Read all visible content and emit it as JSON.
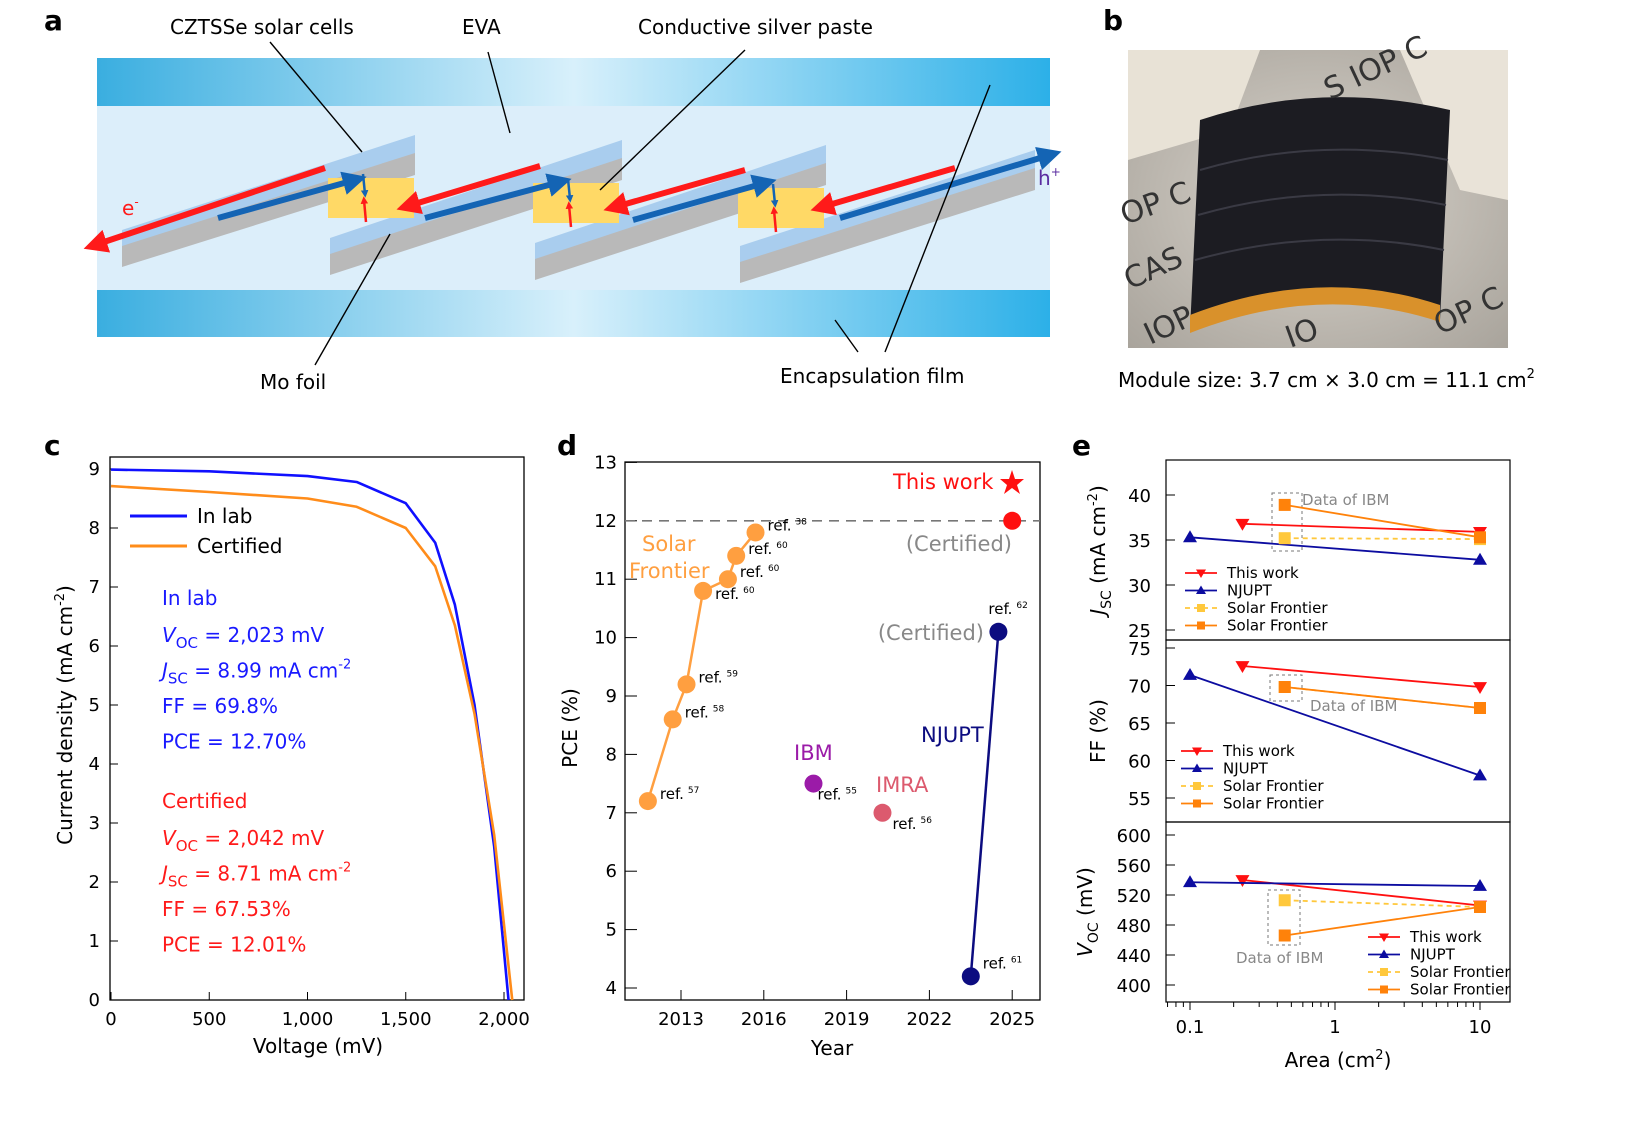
{
  "panels": {
    "a": "a",
    "b": "b",
    "c": "c",
    "d": "d",
    "e": "e"
  },
  "panel_a": {
    "labels": {
      "cells": "CZTSSe solar cells",
      "eva": "EVA",
      "paste": "Conductive silver paste",
      "mo": "Mo foil",
      "encap": "Encapsulation film",
      "electron": "e",
      "electron_sup": "-",
      "hole": "h",
      "hole_sup": "+"
    },
    "colors": {
      "red_arrow": "#ff1a1a",
      "blue_arrow": "#1464b4",
      "gold": "#ffd966",
      "band": "#3fb6e6"
    }
  },
  "panel_b": {
    "caption": "Module size: 3.7 cm × 3.0 cm = 11.1 cm",
    "caption_sup": "2",
    "photo_text": [
      "S IOP C",
      "OP C",
      "CAS",
      "IOP",
      "IO",
      "OP C"
    ]
  },
  "chart_data": [
    {
      "panel": "c",
      "type": "line",
      "xlabel": "Voltage (mV)",
      "ylabel": "Current density (mA cm",
      "ylabel_sup": "-2",
      "ylabel_end": ")",
      "xlim": [
        0,
        2100
      ],
      "ylim": [
        0,
        9.2
      ],
      "xticks": [
        0,
        500,
        1000,
        1500,
        2000
      ],
      "xtick_labels": [
        "0",
        "500",
        "1,000",
        "1,500",
        "2,000"
      ],
      "yticks": [
        0,
        1,
        2,
        3,
        4,
        5,
        6,
        7,
        8,
        9
      ],
      "legend": "top-left",
      "series": [
        {
          "name": "In lab",
          "color": "#1010ff",
          "x": [
            0,
            500,
            1000,
            1250,
            1500,
            1650,
            1750,
            1850,
            1950,
            2023
          ],
          "y": [
            8.99,
            8.96,
            8.88,
            8.78,
            8.42,
            7.75,
            6.7,
            5.0,
            2.6,
            0
          ]
        },
        {
          "name": "Certified",
          "color": "#ff8c1a",
          "x": [
            0,
            500,
            1000,
            1250,
            1500,
            1650,
            1750,
            1850,
            1950,
            2042
          ],
          "y": [
            8.71,
            8.61,
            8.5,
            8.36,
            8.0,
            7.35,
            6.35,
            4.85,
            2.8,
            0
          ]
        }
      ],
      "annotations": {
        "lab": {
          "title": "In lab",
          "color": "#1a1aff",
          "lines": [
            [
              "V",
              "OC",
              " = 2,023 mV",
              ""
            ],
            [
              "J",
              "SC",
              " = 8.99 mA cm",
              "-2"
            ],
            [
              "",
              "",
              "FF = 69.8%",
              ""
            ],
            [
              "",
              "",
              "PCE = 12.70%",
              ""
            ]
          ]
        },
        "cert": {
          "title": "Certified",
          "color": "#ff1a1a",
          "lines": [
            [
              "V",
              "OC",
              " = 2,042 mV",
              ""
            ],
            [
              "J",
              "SC",
              " = 8.71 mA cm",
              "-2"
            ],
            [
              "",
              "",
              "FF = 67.53%",
              ""
            ],
            [
              "",
              "",
              "PCE = 12.01%",
              ""
            ]
          ]
        }
      }
    },
    {
      "panel": "d",
      "type": "scatter",
      "xlabel": "Year",
      "ylabel": "PCE (%)",
      "xlim": [
        2011,
        2026
      ],
      "ylim": [
        3.8,
        13
      ],
      "xticks": [
        2013,
        2016,
        2019,
        2022,
        2025
      ],
      "yticks": [
        4,
        5,
        6,
        7,
        8,
        9,
        10,
        11,
        12,
        13
      ],
      "reference_line": 12,
      "groups": [
        {
          "name": "Solar\nFrontier",
          "color": "#ff9f40",
          "connected": true,
          "x": [
            2011.8,
            2012.7,
            2013.2,
            2013.8,
            2014.7,
            2015.0,
            2015.7
          ],
          "y": [
            7.2,
            8.6,
            9.2,
            10.8,
            11.0,
            11.4,
            11.8
          ],
          "refs": [
            "57",
            "58",
            "59",
            "60",
            "60",
            "60",
            "38"
          ]
        },
        {
          "name": "IBM",
          "color": "#9b1ba8",
          "connected": false,
          "x": [
            2017.8
          ],
          "y": [
            7.5
          ],
          "refs": [
            "55"
          ]
        },
        {
          "name": "IMRA",
          "color": "#dc5a6e",
          "connected": false,
          "x": [
            2020.3
          ],
          "y": [
            7.0
          ],
          "refs": [
            "56"
          ]
        },
        {
          "name": "NJUPT",
          "color": "#0c0c80",
          "connected": true,
          "x": [
            2023.5,
            2024.5
          ],
          "y": [
            4.2,
            10.1
          ],
          "refs": [
            "61",
            "62"
          ]
        },
        {
          "name": "This work",
          "color": "#ff1010",
          "connected": false,
          "x": [
            2025
          ],
          "y": [
            12.0
          ],
          "refs": []
        }
      ],
      "labels": {
        "ref": "ref.",
        "certified": "(Certified)",
        "this_work": "This work"
      }
    },
    {
      "panel": "e",
      "type": "line",
      "xscale": "log",
      "xlabel": "Area (cm",
      "xlabel_sup": "2",
      "xlabel_end": ")",
      "xlim": [
        0.07,
        15
      ],
      "xticks": [
        0.1,
        1,
        10
      ],
      "xtick_labels": [
        "0.1",
        "1",
        "10"
      ],
      "subplots": [
        {
          "ylabel": "J",
          "ylabel_sub": "SC",
          "ylabel_rest": " (mA cm",
          "ylabel_sup": "-2",
          "ylabel_end": ")",
          "ylim": [
            24,
            44
          ],
          "yticks": [
            25,
            30,
            35,
            40
          ],
          "series": [
            {
              "name": "This work",
              "x": [
                0.23,
                10
              ],
              "y": [
                36.8,
                35.9
              ]
            },
            {
              "name": "NJUPT",
              "x": [
                0.1,
                10
              ],
              "y": [
                35.3,
                32.8
              ]
            },
            {
              "name": "Solar Frontier",
              "x": [
                0.45,
                10
              ],
              "y": [
                35.2,
                35.1
              ]
            },
            {
              "name": "Solar Frontier",
              "x": [
                0.45,
                10
              ],
              "y": [
                38.9,
                35.3
              ]
            }
          ],
          "note": "Data of IBM",
          "legend": "lower-left"
        },
        {
          "ylabel": "FF (%)",
          "ylim": [
            52,
            76
          ],
          "yticks": [
            55,
            60,
            65,
            70,
            75
          ],
          "series": [
            {
              "name": "This work",
              "x": [
                0.23,
                10
              ],
              "y": [
                72.6,
                69.8
              ]
            },
            {
              "name": "NJUPT",
              "x": [
                0.1,
                10
              ],
              "y": [
                71.4,
                58.0
              ]
            },
            {
              "name": "Solar Frontier",
              "x": [
                0.45,
                10
              ],
              "y": [
                69.8,
                67.0
              ]
            },
            {
              "name": "Solar Frontier",
              "x": [
                0.45,
                10
              ],
              "y": [
                69.8,
                67.0
              ]
            }
          ],
          "note": "Data of IBM",
          "legend": "lower-left"
        },
        {
          "ylabel": "V",
          "ylabel_sub": "OC",
          "ylabel_rest": " (mV)",
          "ylim": [
            380,
            620
          ],
          "yticks": [
            400,
            440,
            480,
            520,
            560,
            600
          ],
          "series": [
            {
              "name": "This work",
              "x": [
                0.23,
                10
              ],
              "y": [
                540,
                506
              ]
            },
            {
              "name": "NJUPT",
              "x": [
                0.1,
                10
              ],
              "y": [
                537,
                532
              ]
            },
            {
              "name": "Solar Frontier",
              "x": [
                0.45,
                10
              ],
              "y": [
                513,
                504
              ]
            },
            {
              "name": "Solar Frontier",
              "x": [
                0.45,
                10
              ],
              "y": [
                466,
                504
              ]
            }
          ],
          "note": "Data of IBM",
          "legend": "lower-right"
        }
      ],
      "styles": [
        {
          "color": "#ff1010",
          "marker": "triangle-down",
          "dash": false
        },
        {
          "color": "#0c0ca0",
          "marker": "triangle-up",
          "dash": false
        },
        {
          "color": "#ffc83c",
          "marker": "square",
          "dash": true
        },
        {
          "color": "#ff820a",
          "marker": "square",
          "dash": false
        }
      ]
    }
  ]
}
